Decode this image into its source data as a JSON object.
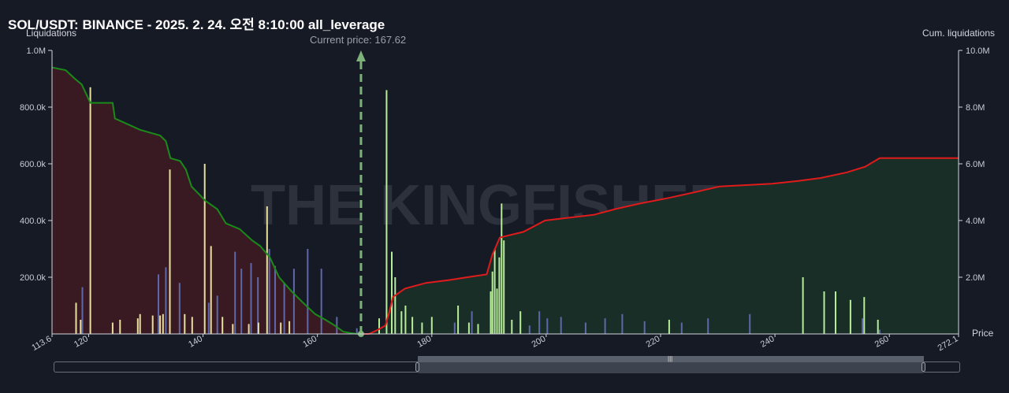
{
  "title": "SOL/USDT: BINANCE - 2025. 2. 24. 오전 8:10:00 all_leverage",
  "left_axis_label": "Liquidations",
  "right_axis_label": "Cum. liquidations",
  "x_axis_label": "Price",
  "current_price_label": "Current price: 167.62",
  "watermark": "THE KINGFISHER .io",
  "colors": {
    "background": "#161a25",
    "short_cum_line": "#1a8a1a",
    "long_cum_line": "#e01b1b",
    "short_fill": "#3a1a22",
    "long_fill": "#1a2e28",
    "current_price_line": "#7fb27a"
  },
  "chart_data": {
    "type": "bar+line",
    "x_range": [
      113.6,
      272.1
    ],
    "left_ylim": [
      0,
      1000000
    ],
    "right_ylim": [
      0,
      10000000
    ],
    "x_ticks": [
      "113.6",
      "120",
      "140",
      "160",
      "180",
      "200",
      "220",
      "240",
      "260",
      "272.1"
    ],
    "x_tick_values": [
      113.6,
      120,
      140,
      160,
      180,
      200,
      220,
      240,
      260,
      272.1
    ],
    "left_ticks": [
      "1.0M",
      "800.0k",
      "600.0k",
      "400.0k",
      "200.0k"
    ],
    "left_tick_values": [
      1000000,
      800000,
      600000,
      400000,
      200000
    ],
    "right_ticks": [
      "10.0M",
      "8.0M",
      "6.0M",
      "4.0M",
      "2.0M"
    ],
    "right_tick_values": [
      10000000,
      8000000,
      6000000,
      4000000,
      2000000
    ],
    "current_price": 167.62,
    "bars_yellow": [
      [
        117.8,
        110000
      ],
      [
        118.6,
        50000
      ],
      [
        120.3,
        870000
      ],
      [
        124.2,
        40000
      ],
      [
        125.5,
        50000
      ],
      [
        128.6,
        55000
      ],
      [
        129.0,
        70000
      ],
      [
        131.2,
        65000
      ],
      [
        132.5,
        65000
      ],
      [
        133.0,
        70000
      ],
      [
        134.2,
        580000
      ],
      [
        136.8,
        70000
      ],
      [
        138.1,
        60000
      ],
      [
        140.3,
        600000
      ],
      [
        141.4,
        310000
      ],
      [
        143.4,
        60000
      ],
      [
        145.2,
        35000
      ],
      [
        148.0,
        35000
      ],
      [
        149.7,
        40000
      ],
      [
        151.2,
        450000
      ],
      [
        153.6,
        40000
      ],
      [
        155.1,
        45000
      ]
    ],
    "bars_blue": [
      [
        118.9,
        165000
      ],
      [
        132.2,
        210000
      ],
      [
        133.5,
        235000
      ],
      [
        135.9,
        180000
      ],
      [
        141.0,
        110000
      ],
      [
        142.5,
        135000
      ],
      [
        145.6,
        290000
      ],
      [
        146.7,
        230000
      ],
      [
        148.4,
        250000
      ],
      [
        149.6,
        200000
      ],
      [
        151.6,
        300000
      ],
      [
        152.6,
        240000
      ],
      [
        154.2,
        180000
      ],
      [
        155.9,
        230000
      ],
      [
        158.3,
        300000
      ],
      [
        160.7,
        230000
      ],
      [
        163.4,
        60000
      ],
      [
        166.9,
        20000
      ],
      [
        184.0,
        40000
      ],
      [
        187.0,
        80000
      ],
      [
        197.1,
        30000
      ],
      [
        198.8,
        80000
      ],
      [
        200.2,
        55000
      ],
      [
        202.6,
        60000
      ],
      [
        206.9,
        40000
      ],
      [
        210.3,
        55000
      ],
      [
        213.3,
        70000
      ],
      [
        217.2,
        45000
      ],
      [
        223.7,
        40000
      ],
      [
        228.3,
        55000
      ],
      [
        235.6,
        70000
      ],
      [
        255.3,
        55000
      ],
      [
        258.3,
        15000
      ]
    ],
    "bars_green": [
      [
        170.8,
        55000
      ],
      [
        172.1,
        860000
      ],
      [
        173.0,
        290000
      ],
      [
        173.6,
        200000
      ],
      [
        174.7,
        80000
      ],
      [
        175.4,
        100000
      ],
      [
        176.6,
        60000
      ],
      [
        178.3,
        40000
      ],
      [
        180.0,
        60000
      ],
      [
        184.6,
        100000
      ],
      [
        186.5,
        40000
      ],
      [
        188.1,
        35000
      ],
      [
        190.3,
        150000
      ],
      [
        190.6,
        220000
      ],
      [
        191.0,
        300000
      ],
      [
        191.4,
        160000
      ],
      [
        191.8,
        270000
      ],
      [
        192.2,
        460000
      ],
      [
        192.6,
        330000
      ],
      [
        194.0,
        50000
      ],
      [
        195.5,
        80000
      ],
      [
        221.5,
        50000
      ],
      [
        244.9,
        200000
      ],
      [
        248.6,
        150000
      ],
      [
        250.6,
        150000
      ],
      [
        253.2,
        120000
      ],
      [
        255.6,
        130000
      ],
      [
        258.0,
        50000
      ]
    ],
    "short_cumulative": [
      [
        113.6,
        9400000
      ],
      [
        116.0,
        9300000
      ],
      [
        117.6,
        9000000
      ],
      [
        118.8,
        8800000
      ],
      [
        120.3,
        8150000
      ],
      [
        124.2,
        8150000
      ],
      [
        124.6,
        7600000
      ],
      [
        129.0,
        7200000
      ],
      [
        132.5,
        7000000
      ],
      [
        133.5,
        6800000
      ],
      [
        134.3,
        6200000
      ],
      [
        136.0,
        6100000
      ],
      [
        137.0,
        5800000
      ],
      [
        138.0,
        5200000
      ],
      [
        140.4,
        4700000
      ],
      [
        142.5,
        4400000
      ],
      [
        144.0,
        3900000
      ],
      [
        146.4,
        3700000
      ],
      [
        148.6,
        3300000
      ],
      [
        150.0,
        3100000
      ],
      [
        151.7,
        2700000
      ],
      [
        153.3,
        2000000
      ],
      [
        155.5,
        1500000
      ],
      [
        157.5,
        1100000
      ],
      [
        159.6,
        700000
      ],
      [
        161.4,
        500000
      ],
      [
        163.0,
        300000
      ],
      [
        164.5,
        80000
      ],
      [
        165.8,
        30000
      ],
      [
        167.1,
        0
      ]
    ],
    "long_cumulative": [
      [
        167.6,
        0
      ],
      [
        169.0,
        0
      ],
      [
        170.6,
        150000
      ],
      [
        171.9,
        300000
      ],
      [
        172.6,
        800000
      ],
      [
        173.2,
        1300000
      ],
      [
        175.3,
        1600000
      ],
      [
        179.0,
        1800000
      ],
      [
        183.0,
        1900000
      ],
      [
        186.2,
        2000000
      ],
      [
        189.6,
        2100000
      ],
      [
        190.6,
        2800000
      ],
      [
        191.9,
        3400000
      ],
      [
        196.0,
        3600000
      ],
      [
        199.8,
        4000000
      ],
      [
        204.0,
        4100000
      ],
      [
        208.3,
        4200000
      ],
      [
        212.0,
        4400000
      ],
      [
        216.4,
        4600000
      ],
      [
        221.5,
        4800000
      ],
      [
        226.0,
        5000000
      ],
      [
        230.3,
        5200000
      ],
      [
        235.0,
        5250000
      ],
      [
        239.5,
        5300000
      ],
      [
        244.2,
        5400000
      ],
      [
        248.0,
        5500000
      ],
      [
        252.6,
        5700000
      ],
      [
        255.8,
        5900000
      ],
      [
        258.3,
        6200000
      ],
      [
        272.1,
        6200000
      ]
    ]
  }
}
